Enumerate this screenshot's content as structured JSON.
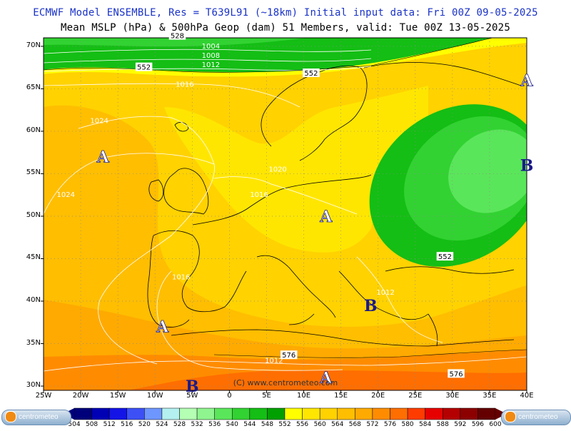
{
  "header": {
    "line1": "ECMWF Model ENSEMBLE, Res = T639L91 (~18km)  Initial input data: Fri 00Z 09-05-2025",
    "line2": "Mean MSLP (hPa) & 500hPa Geop (dam)   51 Members, valid: Tue 00Z 13-05-2025"
  },
  "axes": {
    "lat_labels": [
      "70N",
      "65N",
      "60N",
      "55N",
      "50N",
      "45N",
      "40N",
      "35N",
      "30N"
    ],
    "lon_labels": [
      "25W",
      "20W",
      "15W",
      "10W",
      "5W",
      "0",
      "5E",
      "10E",
      "15E",
      "20E",
      "25E",
      "30E",
      "35E",
      "40E"
    ]
  },
  "copyright": "(C) www.centrometeo.com",
  "pressure_centers": [
    {
      "type": "A",
      "lon": -17,
      "lat": 57
    },
    {
      "type": "A",
      "lon": 13,
      "lat": 50
    },
    {
      "type": "A",
      "lon": -9,
      "lat": 37
    },
    {
      "type": "A",
      "lon": 13,
      "lat": 31
    },
    {
      "type": "A",
      "lon": 40,
      "lat": 66
    },
    {
      "type": "B",
      "lon": 40,
      "lat": 56
    },
    {
      "type": "B",
      "lon": 19,
      "lat": 39.5
    },
    {
      "type": "B",
      "lon": -5,
      "lat": 30
    }
  ],
  "geop_labels": [
    {
      "text": "552",
      "lon": -11.5,
      "lat": 67.5
    },
    {
      "text": "552",
      "lon": 11.0,
      "lat": 66.8
    },
    {
      "text": "552",
      "lon": 29.0,
      "lat": 45.2
    },
    {
      "text": "576",
      "lon": 8.0,
      "lat": 33.6
    },
    {
      "text": "576",
      "lon": 30.5,
      "lat": 31.4
    },
    {
      "text": "528",
      "lon": -7.0,
      "lat": 71.2
    }
  ],
  "isobar_labels": [
    {
      "text": "1004",
      "lon": -2.5,
      "lat": 70.0
    },
    {
      "text": "1008",
      "lon": -2.5,
      "lat": 68.9
    },
    {
      "text": "1012",
      "lon": -2.5,
      "lat": 67.8
    },
    {
      "text": "1016",
      "lon": -6.0,
      "lat": 65.5
    },
    {
      "text": "1024",
      "lon": -17.5,
      "lat": 61.2
    },
    {
      "text": "1024",
      "lon": -22.0,
      "lat": 52.5
    },
    {
      "text": "1020",
      "lon": 6.5,
      "lat": 55.5
    },
    {
      "text": "1016",
      "lon": 4.0,
      "lat": 52.5
    },
    {
      "text": "1016",
      "lon": -6.5,
      "lat": 42.8
    },
    {
      "text": "1012",
      "lon": 21.0,
      "lat": 41.0
    },
    {
      "text": "1012",
      "lon": 6.0,
      "lat": 33.0
    }
  ],
  "colorbar": {
    "ticks": [
      "504",
      "508",
      "512",
      "516",
      "520",
      "524",
      "528",
      "532",
      "536",
      "540",
      "544",
      "548",
      "552",
      "556",
      "560",
      "564",
      "568",
      "572",
      "576",
      "580",
      "584",
      "588",
      "592",
      "596",
      "600"
    ],
    "colors": [
      "#00007a",
      "#0000b4",
      "#1414e6",
      "#3c50f5",
      "#6e96ff",
      "#b4f0f0",
      "#b4ffb4",
      "#8ff58f",
      "#5ae65a",
      "#32d232",
      "#14be14",
      "#00a000",
      "#ffff00",
      "#ffe600",
      "#ffd200",
      "#ffbe00",
      "#ffaa00",
      "#ff8c00",
      "#ff6e00",
      "#ff3c00",
      "#e60000",
      "#b40000",
      "#8c0000",
      "#640000"
    ]
  },
  "logo_text": "centrometeo"
}
